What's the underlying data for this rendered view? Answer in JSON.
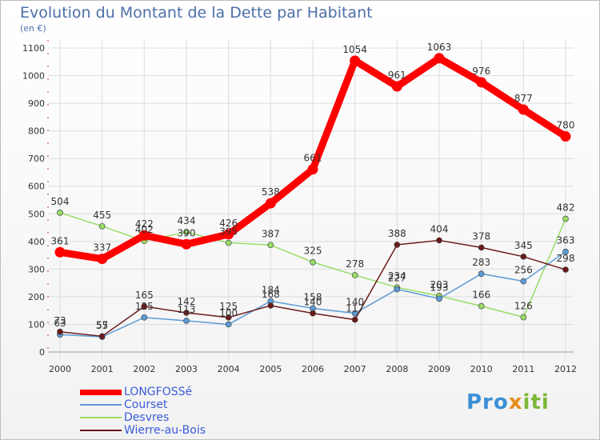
{
  "title": "Evolution du Montant de la Dette par Habitant",
  "unit": "(en €)",
  "logo": {
    "part1": "Pro",
    "part2": "x",
    "part3": "iti"
  },
  "chart_data": {
    "type": "line",
    "x": [
      "2000",
      "2001",
      "2002",
      "2003",
      "2004",
      "2005",
      "2006",
      "2007",
      "2008",
      "2009",
      "2010",
      "2011",
      "2012"
    ],
    "ylim": [
      0,
      1100
    ],
    "yticks": [
      0,
      100,
      200,
      300,
      400,
      500,
      600,
      700,
      800,
      900,
      1000,
      1100
    ],
    "grid": true,
    "legend_position": "bottom-left",
    "series": [
      {
        "name": "LONGFOSSé",
        "color": "#ff0000",
        "values": [
          361,
          337,
          422,
          390,
          426,
          538,
          661,
          1054,
          961,
          1063,
          976,
          877,
          780
        ]
      },
      {
        "name": "Courset",
        "color": "#5b9bd5",
        "values": [
          63,
          55,
          125,
          113,
          100,
          184,
          158,
          140,
          227,
          193,
          283,
          256,
          363
        ]
      },
      {
        "name": "Desvres",
        "color": "#99dd66",
        "values": [
          504,
          455,
          402,
          434,
          395,
          387,
          325,
          278,
          234,
          203,
          166,
          126,
          482
        ]
      },
      {
        "name": "Wierre-au-Bois",
        "color": "#6b1a1a",
        "values": [
          73,
          57,
          165,
          142,
          125,
          168,
          140,
          117,
          388,
          404,
          378,
          345,
          298
        ]
      }
    ]
  }
}
